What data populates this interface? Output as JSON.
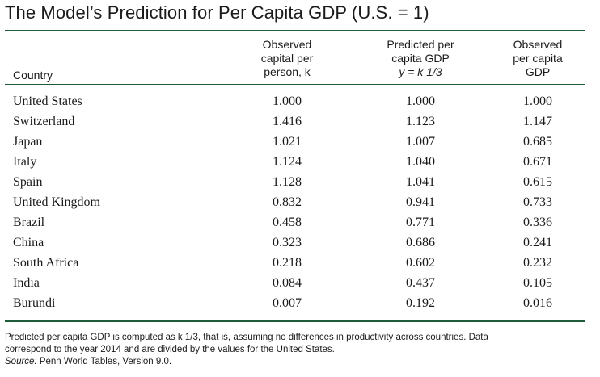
{
  "title": "The Model’s Prediction for Per Capita GDP (U.S. = 1)",
  "headers": {
    "country": "Country",
    "col1": [
      "Observed",
      "capital per",
      "person, k"
    ],
    "col2": [
      "Predicted per",
      "capita GDP",
      "y = k 1/3"
    ],
    "col3": [
      "Observed",
      "per capita",
      "GDP"
    ]
  },
  "rows": [
    {
      "country": "United States",
      "capital": "1.000",
      "predicted": "1.000",
      "observed": "1.000"
    },
    {
      "country": "Switzerland",
      "capital": "1.416",
      "predicted": "1.123",
      "observed": "1.147"
    },
    {
      "country": "Japan",
      "capital": "1.021",
      "predicted": "1.007",
      "observed": "0.685"
    },
    {
      "country": "Italy",
      "capital": "1.124",
      "predicted": "1.040",
      "observed": "0.671"
    },
    {
      "country": "Spain",
      "capital": "1.128",
      "predicted": "1.041",
      "observed": "0.615"
    },
    {
      "country": "United Kingdom",
      "capital": "0.832",
      "predicted": "0.941",
      "observed": "0.733"
    },
    {
      "country": "Brazil",
      "capital": "0.458",
      "predicted": "0.771",
      "observed": "0.336"
    },
    {
      "country": "China",
      "capital": "0.323",
      "predicted": "0.686",
      "observed": "0.241"
    },
    {
      "country": "South Africa",
      "capital": "0.218",
      "predicted": "0.602",
      "observed": "0.232"
    },
    {
      "country": "India",
      "capital": "0.084",
      "predicted": "0.437",
      "observed": "0.105"
    },
    {
      "country": "Burundi",
      "capital": "0.007",
      "predicted": "0.192",
      "observed": "0.016"
    }
  ],
  "note": {
    "line1": "Predicted per capita GDP is computed as k 1/3, that is, assuming no differences in productivity across countries. Data",
    "line2": "correspond to the year 2014 and are divided by the values for the United States.",
    "source_label": "Source:",
    "source_text": " Penn World Tables, Version 9.0."
  }
}
